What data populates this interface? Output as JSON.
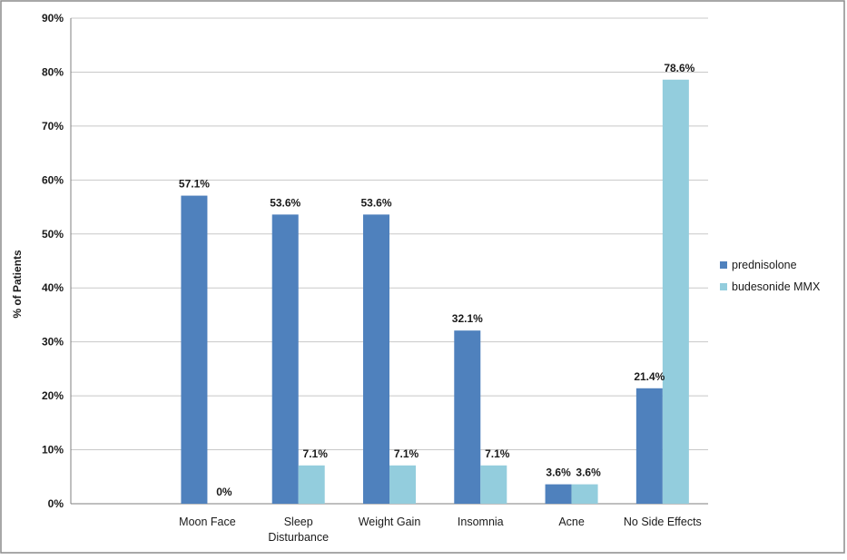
{
  "chart_data": {
    "type": "bar",
    "title": "",
    "xlabel": "",
    "ylabel": "% of Patients",
    "ylim": [
      0,
      90
    ],
    "yticks": [
      "0%",
      "10%",
      "20%",
      "30%",
      "40%",
      "50%",
      "60%",
      "70%",
      "80%",
      "90%"
    ],
    "grid": true,
    "legend_position": "right",
    "categories": [
      [
        "",
        ""
      ],
      [
        "Moon Face"
      ],
      [
        "Sleep",
        "Disturbance"
      ],
      [
        "Weight Gain"
      ],
      [
        "Insomnia"
      ],
      [
        "Acne"
      ],
      [
        "No Side Effects"
      ]
    ],
    "series": [
      {
        "name": "prednisolone",
        "color": "#4f81bd",
        "values": [
          null,
          57.1,
          53.6,
          53.6,
          32.1,
          3.6,
          21.4
        ],
        "labels": [
          "",
          "57.1%",
          "53.6%",
          "53.6%",
          "32.1%",
          "3.6%",
          "21.4%"
        ]
      },
      {
        "name": "budesonide MMX",
        "color": "#93cddd",
        "values": [
          null,
          0,
          7.1,
          7.1,
          7.1,
          3.6,
          78.6
        ],
        "labels": [
          "",
          "0%",
          "7.1%",
          "7.1%",
          "7.1%",
          "3.6%",
          "78.6%"
        ]
      }
    ]
  }
}
